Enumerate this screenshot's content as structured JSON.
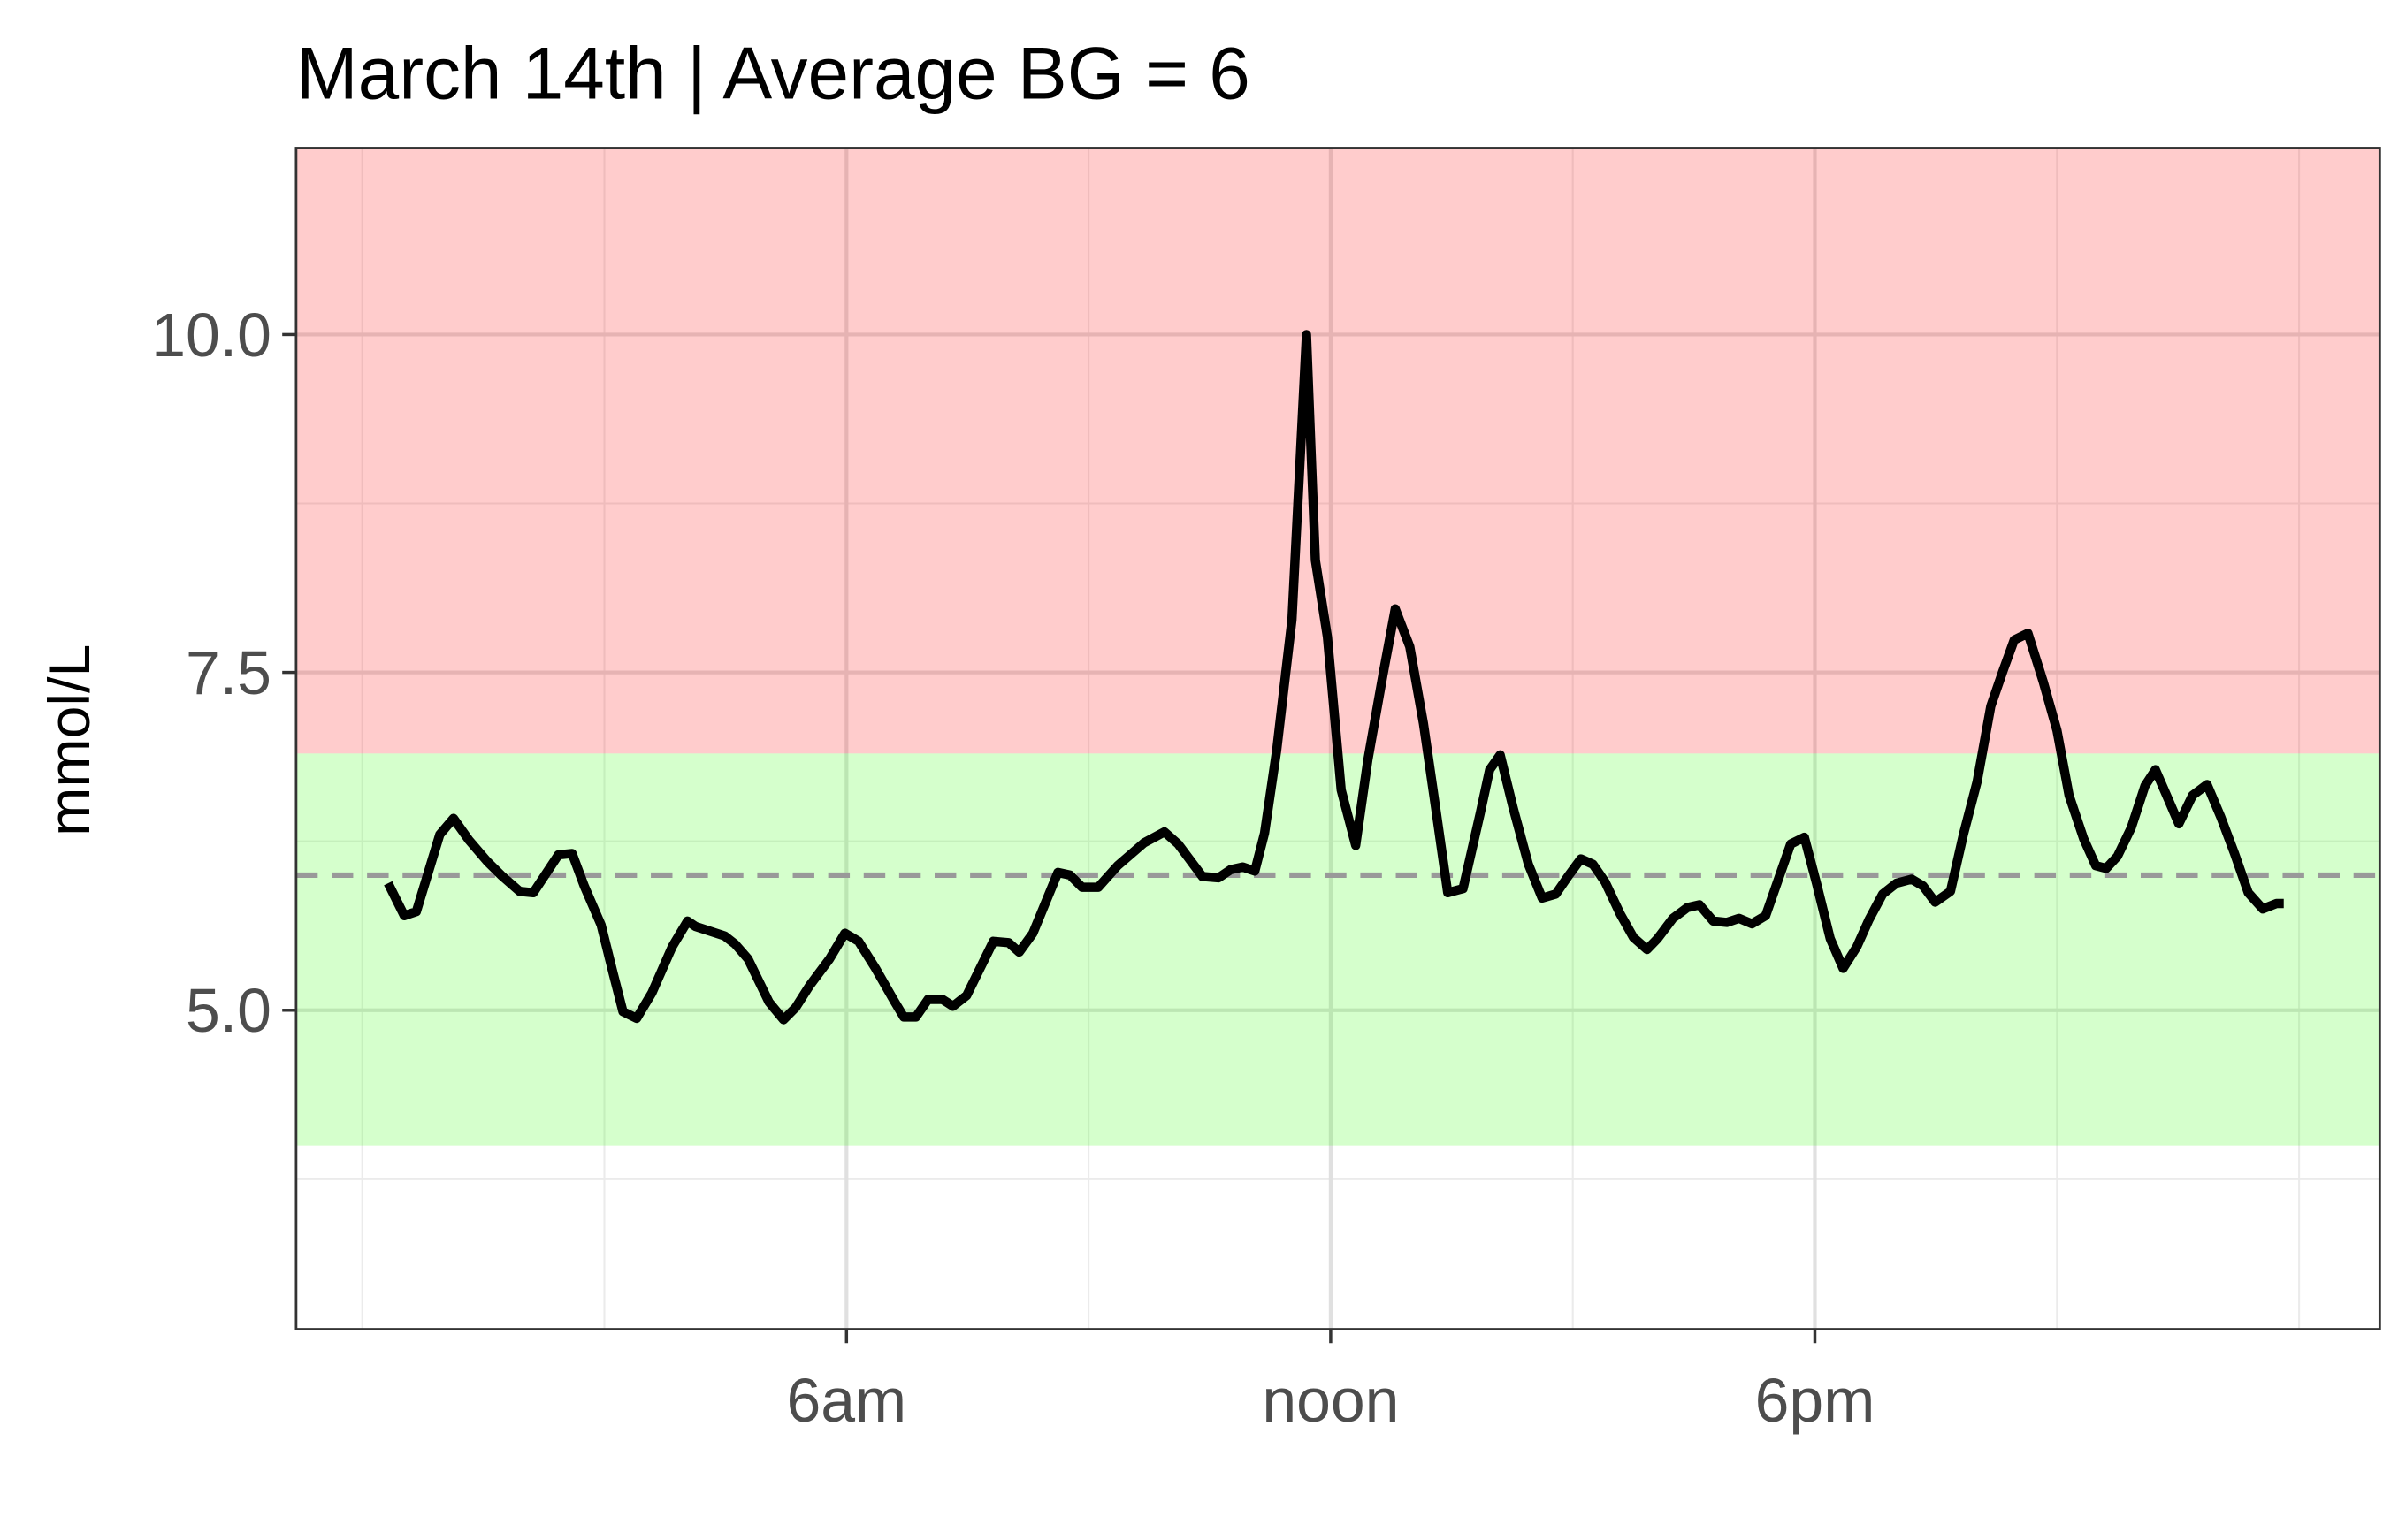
{
  "chart_data": {
    "type": "line",
    "title": "March 14th | Average BG = 6",
    "y_label": "mmol/L",
    "x": [
      0.32,
      0.52,
      0.67,
      0.96,
      1.13,
      1.32,
      1.55,
      1.72,
      1.95,
      2.12,
      2.43,
      2.6,
      2.75,
      2.96,
      3.11,
      3.23,
      3.4,
      3.59,
      3.84,
      4.03,
      4.13,
      4.49,
      4.62,
      4.78,
      5.04,
      5.22,
      5.37,
      5.54,
      5.79,
      5.98,
      6.15,
      6.36,
      6.59,
      6.71,
      6.86,
      7.01,
      7.19,
      7.32,
      7.49,
      7.82,
      8.01,
      8.14,
      8.31,
      8.62,
      8.77,
      8.92,
      9.12,
      9.36,
      9.69,
      9.94,
      10.11,
      10.41,
      10.61,
      10.76,
      10.91,
      11.06,
      11.18,
      11.33,
      11.52,
      11.7,
      11.81,
      11.96,
      12.13,
      12.31,
      12.46,
      12.65,
      12.8,
      12.98,
      13.15,
      13.3,
      13.45,
      13.64,
      13.85,
      13.97,
      14.1,
      14.26,
      14.45,
      14.62,
      14.79,
      14.94,
      15.1,
      15.25,
      15.4,
      15.59,
      15.75,
      15.92,
      16.05,
      16.24,
      16.42,
      16.57,
      16.74,
      16.91,
      17.06,
      17.22,
      17.39,
      17.7,
      17.87,
      18.02,
      18.19,
      18.35,
      18.52,
      18.67,
      18.84,
      19.01,
      19.2,
      19.34,
      19.49,
      19.68,
      19.84,
      20.01,
      20.18,
      20.33,
      20.47,
      20.64,
      20.83,
      21.0,
      21.15,
      21.33,
      21.48,
      21.61,
      21.75,
      21.92,
      22.09,
      22.22,
      22.38,
      22.51,
      22.68,
      22.86,
      23.03,
      23.2,
      23.37,
      23.55,
      23.72,
      23.81
    ],
    "values": [
      5.94,
      5.7,
      5.73,
      6.3,
      6.42,
      6.26,
      6.1,
      6.0,
      5.88,
      5.87,
      6.15,
      6.16,
      5.92,
      5.63,
      5.27,
      4.99,
      4.94,
      5.13,
      5.47,
      5.66,
      5.62,
      5.55,
      5.49,
      5.38,
      5.06,
      4.93,
      5.02,
      5.18,
      5.38,
      5.57,
      5.51,
      5.31,
      5.07,
      4.95,
      4.95,
      5.08,
      5.08,
      5.03,
      5.11,
      5.51,
      5.5,
      5.43,
      5.57,
      6.02,
      6.0,
      5.91,
      5.91,
      6.07,
      6.24,
      6.32,
      6.23,
      5.99,
      5.98,
      6.04,
      6.06,
      6.03,
      6.31,
      6.92,
      7.89,
      10.0,
      8.33,
      7.76,
      6.63,
      6.22,
      6.85,
      7.49,
      7.97,
      7.69,
      7.12,
      6.5,
      5.87,
      5.9,
      6.45,
      6.78,
      6.89,
      6.5,
      6.08,
      5.83,
      5.86,
      5.99,
      6.12,
      6.08,
      5.95,
      5.71,
      5.54,
      5.45,
      5.53,
      5.68,
      5.76,
      5.78,
      5.66,
      5.65,
      5.68,
      5.64,
      5.7,
      6.23,
      6.28,
      5.94,
      5.53,
      5.31,
      5.47,
      5.67,
      5.86,
      5.94,
      5.97,
      5.92,
      5.8,
      5.88,
      6.3,
      6.69,
      7.25,
      7.51,
      7.74,
      7.79,
      7.43,
      7.07,
      6.59,
      6.27,
      6.07,
      6.05,
      6.14,
      6.35,
      6.66,
      6.78,
      6.56,
      6.38,
      6.59,
      6.67,
      6.43,
      6.16,
      5.87,
      5.75,
      5.79,
      5.79
    ],
    "color": "#000000",
    "xlim": [
      -0.82,
      25.0
    ],
    "ylim": [
      2.64,
      11.38
    ],
    "xticks": [
      {
        "value": 6,
        "label": "6am"
      },
      {
        "value": 12,
        "label": "noon"
      },
      {
        "value": 18,
        "label": "6pm"
      }
    ],
    "yticks": [
      {
        "value": 5,
        "label": "5.0"
      },
      7.5,
      {
        "value": 10,
        "label": "10.0"
      }
    ],
    "x_minor_grid": [
      0,
      3,
      9,
      15,
      21,
      24
    ],
    "y_minor_grid": [
      3.75,
      6.25,
      8.75
    ],
    "grid": true,
    "bands": [
      {
        "from": 6.9,
        "to": 11.38,
        "color": "#ff0000"
      },
      {
        "from": 4.0,
        "to": 6.9,
        "color": "#2bff00"
      }
    ],
    "reference_line": {
      "value": 6,
      "color": "#999999"
    }
  }
}
